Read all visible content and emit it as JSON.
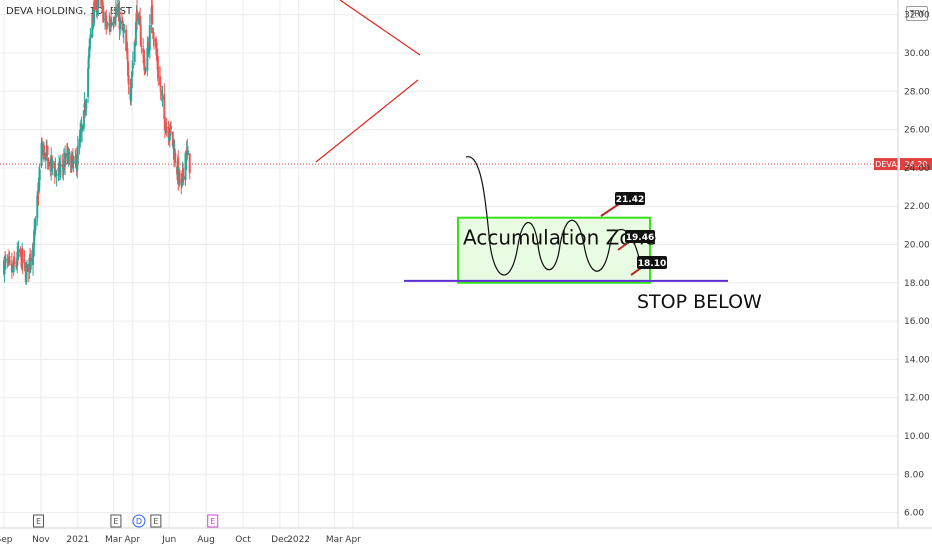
{
  "header": {
    "title": "DEVA HOLDING, 1D, BIST",
    "currency": "TRY"
  },
  "colors": {
    "up": "#26a69a",
    "down": "#ef5350",
    "zone_fill": "#e9fbe2",
    "zone_border": "#39e11a",
    "support_line": "#5b2ed6",
    "trend_line": "#e3241b",
    "price_badge": "#e0403e",
    "grid": "#ececec"
  },
  "chart_data": {
    "type": "candlestick",
    "symbol": "DEVA",
    "last_price": "24.20",
    "y_ticks": [
      "6.00",
      "8.00",
      "10.00",
      "12.00",
      "14.00",
      "16.00",
      "18.00",
      "20.00",
      "22.00",
      "24.00",
      "26.00",
      "28.00",
      "30.00",
      "32.00"
    ],
    "y_range": [
      5.2,
      33.0
    ],
    "x_ticks": [
      "Sep",
      "Nov",
      "2021",
      "Mar",
      "Apr",
      "Jun",
      "Aug",
      "Oct",
      "Dec",
      "2022",
      "Mar",
      "Apr"
    ],
    "x_dates": [
      "2020-09",
      "2020-11",
      "2021-01",
      "2021-03",
      "2021-04",
      "2021-06",
      "2021-08",
      "2021-10",
      "2021-12",
      "2022-01",
      "2022-03",
      "2022-04"
    ],
    "price_path": [
      [
        "2020-09-01",
        19.0
      ],
      [
        "2020-09-15",
        18.6
      ],
      [
        "2020-09-28",
        19.5
      ],
      [
        "2020-10-08",
        18.4
      ],
      [
        "2020-10-22",
        20.5
      ],
      [
        "2020-11-02",
        25.0
      ],
      [
        "2020-11-16",
        24.2
      ],
      [
        "2020-11-30",
        23.7
      ],
      [
        "2020-12-14",
        24.5
      ],
      [
        "2020-12-28",
        24.1
      ],
      [
        "2021-01-11",
        26.5
      ],
      [
        "2021-01-25",
        32.0
      ],
      [
        "2021-02-05",
        33.0
      ],
      [
        "2021-02-19",
        31.2
      ],
      [
        "2021-03-05",
        32.3
      ],
      [
        "2021-03-19",
        30.8
      ],
      [
        "2021-03-29",
        28.0
      ],
      [
        "2021-04-09",
        32.2
      ],
      [
        "2021-04-23",
        29.0
      ],
      [
        "2021-05-03",
        32.0
      ],
      [
        "2021-05-14",
        29.0
      ],
      [
        "2021-05-24",
        26.5
      ],
      [
        "2021-06-04",
        25.8
      ],
      [
        "2021-06-14",
        24.0
      ],
      [
        "2021-06-21",
        22.8
      ],
      [
        "2021-06-28",
        24.8
      ],
      [
        "2021-07-05",
        24.2
      ]
    ],
    "events": [
      {
        "label": "E",
        "date": "2020-10-28"
      },
      {
        "label": "E",
        "date": "2021-03-05"
      },
      {
        "label": "D",
        "date": "2021-04-12"
      },
      {
        "label": "E",
        "date": "2021-05-10"
      },
      {
        "label": "E",
        "date": "2021-08-12"
      }
    ],
    "annotations": {
      "zone_label": "Accumulation Zone",
      "stop_label": "STOP BELOW",
      "targets": [
        "21.42",
        "19.46",
        "18.10"
      ],
      "zone_range": [
        18.0,
        21.4
      ],
      "support_level": 18.1
    }
  }
}
